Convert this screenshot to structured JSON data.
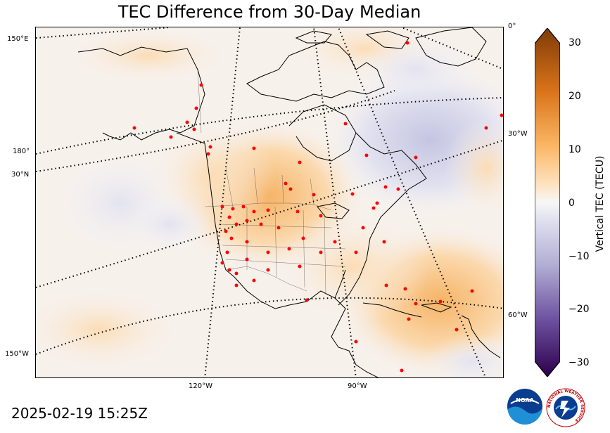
{
  "title": "TEC Difference from 30-Day Median",
  "timestamp": "2025-02-19 15:25Z",
  "colorbar": {
    "label": "Vertical TEC (TECU)",
    "ticks": [
      "30",
      "20",
      "10",
      "0",
      "−10",
      "−20",
      "−30"
    ],
    "min": -30,
    "max": 30,
    "positive_color": "#7f3b08",
    "mid_color": "#f7f7f7",
    "negative_color": "#2d004b"
  },
  "graticule_labels": {
    "left": [
      "150°E",
      "180°",
      "30°N",
      "150°W"
    ],
    "right": [
      "0°",
      "30°W",
      "60°W"
    ],
    "bottom": [
      "120°W",
      "90°W"
    ]
  },
  "logos": {
    "noaa": "NOAA",
    "nws": "NATIONAL WEATHER SERVICE"
  },
  "map": {
    "station_marker_color": "#ff0000",
    "coast_color": "#000000"
  }
}
